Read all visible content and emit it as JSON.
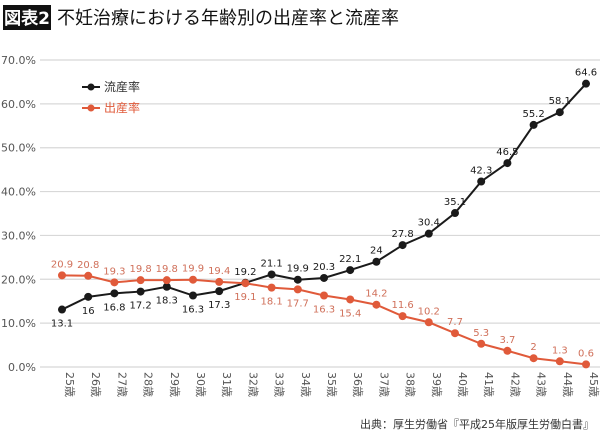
{
  "header": {
    "badge": "図表2",
    "title": "不妊治療における年齢別の出産率と流産率"
  },
  "source": "出典：厚生労働省『平成25年版厚生労働白書』",
  "colors": {
    "miscarriage": "#1a1a1a",
    "birth": "#e05a3a",
    "birth_label": "#d0705a",
    "grid": "#d8d8d8"
  },
  "chart_data": {
    "type": "line",
    "title": "不妊治療における年齢別の出産率と流産率",
    "categories": [
      "25歳",
      "26歳",
      "27歳",
      "28歳",
      "29歳",
      "30歳",
      "31歳",
      "32歳",
      "33歳",
      "34歳",
      "35歳",
      "36歳",
      "37歳",
      "38歳",
      "39歳",
      "40歳",
      "41歳",
      "42歳",
      "43歳",
      "44歳",
      "45歳"
    ],
    "yticks": [
      "0.0%",
      "10.0%",
      "20.0%",
      "30.0%",
      "40.0%",
      "50.0%",
      "60.0%",
      "70.0%"
    ],
    "ylim": [
      0,
      70
    ],
    "grid": true,
    "legend_position": "top-left",
    "series": [
      {
        "name": "流産率",
        "values": [
          13.1,
          16,
          16.8,
          17.2,
          18.3,
          16.3,
          17.3,
          19.2,
          21.1,
          19.9,
          20.3,
          22.1,
          24,
          27.8,
          30.4,
          35.1,
          42.3,
          46.5,
          55.2,
          58.1,
          64.6
        ]
      },
      {
        "name": "出産率",
        "values": [
          20.9,
          20.8,
          19.3,
          19.8,
          19.8,
          19.9,
          19.4,
          19.1,
          18.1,
          17.7,
          16.3,
          15.4,
          14.2,
          11.6,
          10.2,
          7.7,
          5.3,
          3.7,
          2,
          1.3,
          0.6
        ]
      }
    ]
  }
}
